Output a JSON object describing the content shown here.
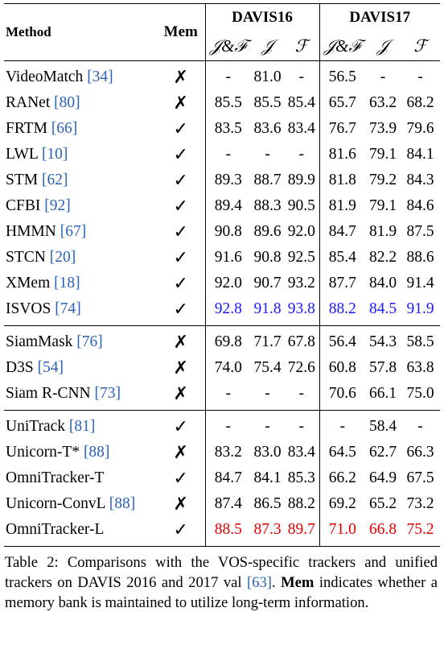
{
  "headers": {
    "method": "Method",
    "mem": "Mem",
    "davis16": "DAVIS16",
    "davis17": "DAVIS17",
    "jf": "𝒥&ℱ",
    "j": "𝒥",
    "f": "ℱ"
  },
  "marks": {
    "yes": "✓",
    "no": "✗"
  },
  "groups": [
    {
      "rows": [
        {
          "name": "VideoMatch ",
          "ref": "[34]",
          "mem": "no",
          "d16": [
            "-",
            "81.0",
            "-"
          ],
          "d17": [
            "56.5",
            "-",
            "-"
          ],
          "style": ""
        },
        {
          "name": "RANet ",
          "ref": "[80]",
          "mem": "no",
          "d16": [
            "85.5",
            "85.5",
            "85.4"
          ],
          "d17": [
            "65.7",
            "63.2",
            "68.2"
          ],
          "style": ""
        },
        {
          "name": "FRTM ",
          "ref": "[66]",
          "mem": "yes",
          "d16": [
            "83.5",
            "83.6",
            "83.4"
          ],
          "d17": [
            "76.7",
            "73.9",
            "79.6"
          ],
          "style": ""
        },
        {
          "name": "LWL ",
          "ref": "[10]",
          "mem": "yes",
          "d16": [
            "-",
            "-",
            "-"
          ],
          "d17": [
            "81.6",
            "79.1",
            "84.1"
          ],
          "style": ""
        },
        {
          "name": "STM ",
          "ref": "[62]",
          "mem": "yes",
          "d16": [
            "89.3",
            "88.7",
            "89.9"
          ],
          "d17": [
            "81.8",
            "79.2",
            "84.3"
          ],
          "style": ""
        },
        {
          "name": "CFBI ",
          "ref": "[92]",
          "mem": "yes",
          "d16": [
            "89.4",
            "88.3",
            "90.5"
          ],
          "d17": [
            "81.9",
            "79.1",
            "84.6"
          ],
          "style": ""
        },
        {
          "name": "HMMN ",
          "ref": "[67]",
          "mem": "yes",
          "d16": [
            "90.8",
            "89.6",
            "92.0"
          ],
          "d17": [
            "84.7",
            "81.9",
            "87.5"
          ],
          "style": ""
        },
        {
          "name": "STCN ",
          "ref": "[20]",
          "mem": "yes",
          "d16": [
            "91.6",
            "90.8",
            "92.5"
          ],
          "d17": [
            "85.4",
            "82.2",
            "88.6"
          ],
          "style": ""
        },
        {
          "name": "XMem ",
          "ref": "[18]",
          "mem": "yes",
          "d16": [
            "92.0",
            "90.7",
            "93.2"
          ],
          "d17": [
            "87.7",
            "84.0",
            "91.4"
          ],
          "style": ""
        },
        {
          "name": "ISVOS ",
          "ref": "[74]",
          "mem": "yes",
          "d16": [
            "92.8",
            "91.8",
            "93.8"
          ],
          "d17": [
            "88.2",
            "84.5",
            "91.9"
          ],
          "style": "blue"
        }
      ]
    },
    {
      "rows": [
        {
          "name": "SiamMask ",
          "ref": "[76]",
          "mem": "no",
          "d16": [
            "69.8",
            "71.7",
            "67.8"
          ],
          "d17": [
            "56.4",
            "54.3",
            "58.5"
          ],
          "style": ""
        },
        {
          "name": "D3S ",
          "ref": "[54]",
          "mem": "no",
          "d16": [
            "74.0",
            "75.4",
            "72.6"
          ],
          "d17": [
            "60.8",
            "57.8",
            "63.8"
          ],
          "style": ""
        },
        {
          "name": "Siam R-CNN ",
          "ref": "[73]",
          "mem": "no",
          "d16": [
            "-",
            "-",
            "-"
          ],
          "d17": [
            "70.6",
            "66.1",
            "75.0"
          ],
          "style": ""
        }
      ]
    },
    {
      "rows": [
        {
          "name": "UniTrack ",
          "ref": "[81]",
          "mem": "yes",
          "d16": [
            "-",
            "-",
            "-"
          ],
          "d17": [
            "-",
            "58.4",
            "-"
          ],
          "style": ""
        },
        {
          "name": "Unicorn-T* ",
          "ref": "[88]",
          "mem": "no",
          "d16": [
            "83.2",
            "83.0",
            "83.4"
          ],
          "d17": [
            "64.5",
            "62.7",
            "66.3"
          ],
          "style": ""
        },
        {
          "name": "OmniTracker-T",
          "ref": "",
          "mem": "yes",
          "d16": [
            "84.7",
            "84.1",
            "85.3"
          ],
          "d17": [
            "66.2",
            "64.9",
            "67.5"
          ],
          "style": ""
        },
        {
          "name": "Unicorn-ConvL ",
          "ref": "[88]",
          "mem": "no",
          "d16": [
            "87.4",
            "86.5",
            "88.2"
          ],
          "d17": [
            "69.2",
            "65.2",
            "73.2"
          ],
          "style": ""
        },
        {
          "name": "OmniTracker-L",
          "ref": "",
          "mem": "yes",
          "d16": [
            "88.5",
            "87.3",
            "89.7"
          ],
          "d17": [
            "71.0",
            "66.8",
            "75.2"
          ],
          "style": "red"
        }
      ]
    }
  ],
  "caption": {
    "prefix": "Table 2:  Comparisons with the VOS-specific trackers and unified trackers on DAVIS 2016 and 2017 val ",
    "ref": "[63]",
    "middle": ". ",
    "bold": "Mem",
    "suffix": " indicates whether a memory bank is maintained to utilize long-term information."
  }
}
